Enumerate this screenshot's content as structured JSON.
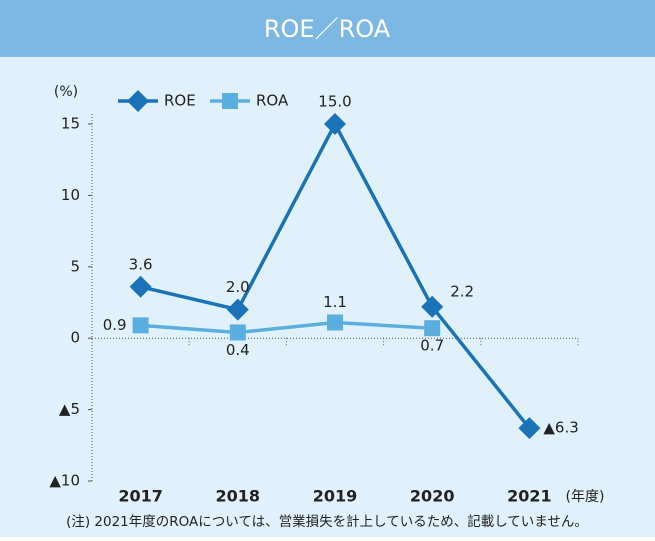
{
  "chart_data": {
    "type": "line",
    "title": "ROE／ROA",
    "y_unit": "(%)",
    "x_unit": "(年度)",
    "note": "(注) 2021年度のROAについては、営業損失を計上しているため、記載していません。",
    "categories": [
      "2017",
      "2018",
      "2019",
      "2020",
      "2021"
    ],
    "series": [
      {
        "name": "ROE",
        "color": "#1a72b9",
        "marker": "diamond",
        "values": [
          3.6,
          2.0,
          15.0,
          2.2,
          -6.3
        ],
        "value_labels": [
          "3.6",
          "2.0",
          "15.0",
          "2.2",
          "▲6.3"
        ]
      },
      {
        "name": "ROA",
        "color": "#5aaee0",
        "marker": "square",
        "values": [
          0.9,
          0.4,
          1.1,
          0.7,
          null
        ],
        "value_labels": [
          "0.9",
          "0.4",
          "1.1",
          "0.7",
          null
        ]
      }
    ],
    "ylim": [
      -10,
      15
    ],
    "yticks": [
      {
        "value": -10,
        "label": "▲10"
      },
      {
        "value": -5,
        "label": "▲5"
      },
      0,
      5,
      10,
      15
    ],
    "legend": "top-left"
  }
}
